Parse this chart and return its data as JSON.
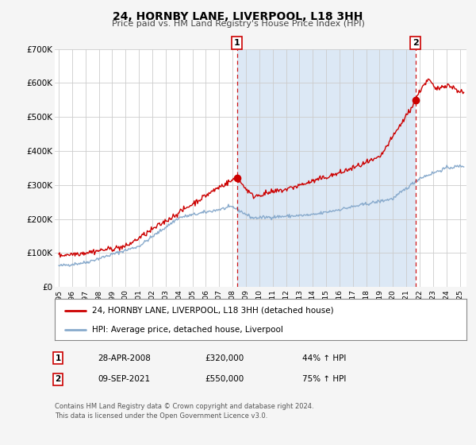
{
  "title": "24, HORNBY LANE, LIVERPOOL, L18 3HH",
  "subtitle": "Price paid vs. HM Land Registry's House Price Index (HPI)",
  "ylim": [
    0,
    700000
  ],
  "xlim_start": 1994.7,
  "xlim_end": 2025.5,
  "background_color": "#f5f5f5",
  "plot_bg_color": "#ffffff",
  "shaded_region_color": "#dce8f5",
  "grid_color": "#cccccc",
  "red_line_color": "#cc0000",
  "blue_line_color": "#88aacc",
  "marker1_x": 2008.33,
  "marker1_y": 320000,
  "marker2_x": 2021.69,
  "marker2_y": 550000,
  "vline1_x": 2008.33,
  "vline2_x": 2021.69,
  "legend_entries": [
    "24, HORNBY LANE, LIVERPOOL, L18 3HH (detached house)",
    "HPI: Average price, detached house, Liverpool"
  ],
  "note1_date": "28-APR-2008",
  "note1_price": "£320,000",
  "note1_hpi": "44% ↑ HPI",
  "note2_date": "09-SEP-2021",
  "note2_price": "£550,000",
  "note2_hpi": "75% ↑ HPI",
  "footer": "Contains HM Land Registry data © Crown copyright and database right 2024.\nThis data is licensed under the Open Government Licence v3.0.",
  "yticks": [
    0,
    100000,
    200000,
    300000,
    400000,
    500000,
    600000,
    700000
  ],
  "ytick_labels": [
    "£0",
    "£100K",
    "£200K",
    "£300K",
    "£400K",
    "£500K",
    "£600K",
    "£700K"
  ]
}
